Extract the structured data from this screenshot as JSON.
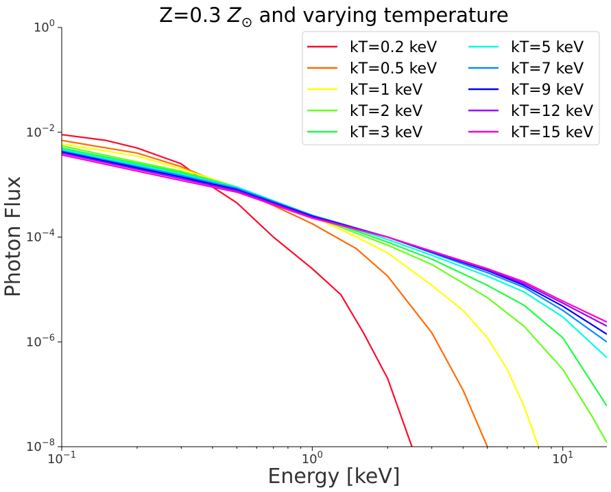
{
  "chart_data": {
    "type": "line",
    "title": "Z=0.3 Z⊙ and varying temperature",
    "title_parts": {
      "prefix": "Z=0.3 ",
      "symbol": "Z",
      "sub": "⊙",
      "suffix": " and varying temperature"
    },
    "xlabel": "Energy [keV]",
    "ylabel": "Photon Flux",
    "x_scale": "log",
    "y_scale": "log",
    "xlim": [
      0.1,
      15
    ],
    "ylim": [
      1e-08,
      1
    ],
    "x_ticks": [
      {
        "value": 0.1,
        "base": "10",
        "exp": "−1"
      },
      {
        "value": 1,
        "base": "10",
        "exp": "0"
      },
      {
        "value": 10,
        "base": "10",
        "exp": "1"
      }
    ],
    "y_ticks": [
      {
        "value": 1,
        "base": "10",
        "exp": "0"
      },
      {
        "value": 0.01,
        "base": "10",
        "exp": "−2"
      },
      {
        "value": 0.0001,
        "base": "10",
        "exp": "−4"
      },
      {
        "value": 1e-06,
        "base": "10",
        "exp": "−6"
      },
      {
        "value": 1e-08,
        "base": "10",
        "exp": "−8"
      }
    ],
    "grid": false,
    "legend_position": "top-right",
    "legend_columns": 2,
    "series": [
      {
        "name": "kT=0.2 keV",
        "color": "#ff0a2a",
        "kT": 0.2,
        "x": [
          0.1,
          0.15,
          0.2,
          0.3,
          0.4,
          0.5,
          0.7,
          1.0,
          1.3,
          1.6,
          2.0,
          2.5
        ],
        "y": [
          0.009,
          0.007,
          0.005,
          0.0025,
          0.0009,
          0.00045,
          0.0001,
          2.5e-05,
          8e-06,
          1.5e-06,
          2e-07,
          1e-08
        ]
      },
      {
        "name": "kT=0.5 keV",
        "color": "#ff6a00",
        "kT": 0.5,
        "x": [
          0.1,
          0.2,
          0.3,
          0.5,
          0.7,
          1.0,
          1.5,
          2.0,
          3.0,
          4.0,
          5.0
        ],
        "y": [
          0.007,
          0.004,
          0.0022,
          0.0008,
          0.0004,
          0.00018,
          6e-05,
          1.8e-05,
          1.5e-06,
          1.2e-07,
          1e-08
        ]
      },
      {
        "name": "kT=1 keV",
        "color": "#ffff00",
        "kT": 1,
        "x": [
          0.1,
          0.2,
          0.3,
          0.5,
          1.0,
          1.5,
          2.0,
          3.0,
          4.0,
          5.0,
          6.0,
          7.0,
          8.0
        ],
        "y": [
          0.006,
          0.0035,
          0.002,
          0.0009,
          0.00025,
          0.0001,
          5e-05,
          1.2e-05,
          4e-06,
          1.2e-06,
          3e-07,
          6e-08,
          1e-08
        ]
      },
      {
        "name": "kT=2 keV",
        "color": "#66ff1a",
        "kT": 2,
        "x": [
          0.1,
          0.3,
          0.5,
          1.0,
          2.0,
          3.0,
          5.0,
          7.0,
          10.0,
          13.0,
          15.0
        ],
        "y": [
          0.0055,
          0.0018,
          0.0009,
          0.00025,
          7e-05,
          3e-05,
          7e-06,
          2e-06,
          3e-07,
          4e-08,
          1.2e-08
        ]
      },
      {
        "name": "kT=3 keV",
        "color": "#1aff40",
        "kT": 3,
        "x": [
          0.1,
          0.3,
          0.5,
          1.0,
          2.0,
          3.0,
          5.0,
          7.0,
          10.0,
          15.0
        ],
        "y": [
          0.005,
          0.0017,
          0.0009,
          0.00026,
          8e-05,
          3.8e-05,
          1.2e-05,
          5e-06,
          1.2e-06,
          6e-08
        ]
      },
      {
        "name": "kT=5 keV",
        "color": "#00ffe0",
        "kT": 5,
        "x": [
          0.1,
          0.3,
          0.5,
          1.0,
          2.0,
          3.0,
          5.0,
          7.0,
          10.0,
          15.0
        ],
        "y": [
          0.0047,
          0.0016,
          0.0009,
          0.00026,
          9e-05,
          4.5e-05,
          1.8e-05,
          9e-06,
          3e-06,
          5e-07
        ]
      },
      {
        "name": "kT=7 keV",
        "color": "#0a8cff",
        "kT": 7,
        "x": [
          0.1,
          0.3,
          0.5,
          1.0,
          2.0,
          3.0,
          5.0,
          7.0,
          10.0,
          15.0
        ],
        "y": [
          0.0044,
          0.0015,
          0.00085,
          0.00026,
          0.0001,
          5e-05,
          2.1e-05,
          1.1e-05,
          4e-06,
          1e-06
        ]
      },
      {
        "name": "kT=9 keV",
        "color": "#0000ff",
        "kT": 9,
        "x": [
          0.1,
          0.3,
          0.5,
          1.0,
          2.0,
          3.0,
          5.0,
          7.0,
          10.0,
          15.0
        ],
        "y": [
          0.0042,
          0.0014,
          0.0008,
          0.00025,
          0.0001,
          5.2e-05,
          2.3e-05,
          1.2e-05,
          4.8e-06,
          1.4e-06
        ]
      },
      {
        "name": "kT=12 keV",
        "color": "#9b00ff",
        "kT": 12,
        "x": [
          0.1,
          0.3,
          0.5,
          1.0,
          2.0,
          3.0,
          5.0,
          7.0,
          10.0,
          15.0
        ],
        "y": [
          0.004,
          0.0013,
          0.00077,
          0.00024,
          0.0001,
          5.3e-05,
          2.4e-05,
          1.3e-05,
          5.5e-06,
          2e-06
        ]
      },
      {
        "name": "kT=15 keV",
        "color": "#ff00c8",
        "kT": 15,
        "x": [
          0.1,
          0.3,
          0.5,
          1.0,
          2.0,
          3.0,
          5.0,
          7.0,
          10.0,
          15.0
        ],
        "y": [
          0.0037,
          0.0012,
          0.00072,
          0.00023,
          0.0001,
          5.4e-05,
          2.5e-05,
          1.4e-05,
          6e-06,
          2.4e-06
        ]
      }
    ]
  }
}
